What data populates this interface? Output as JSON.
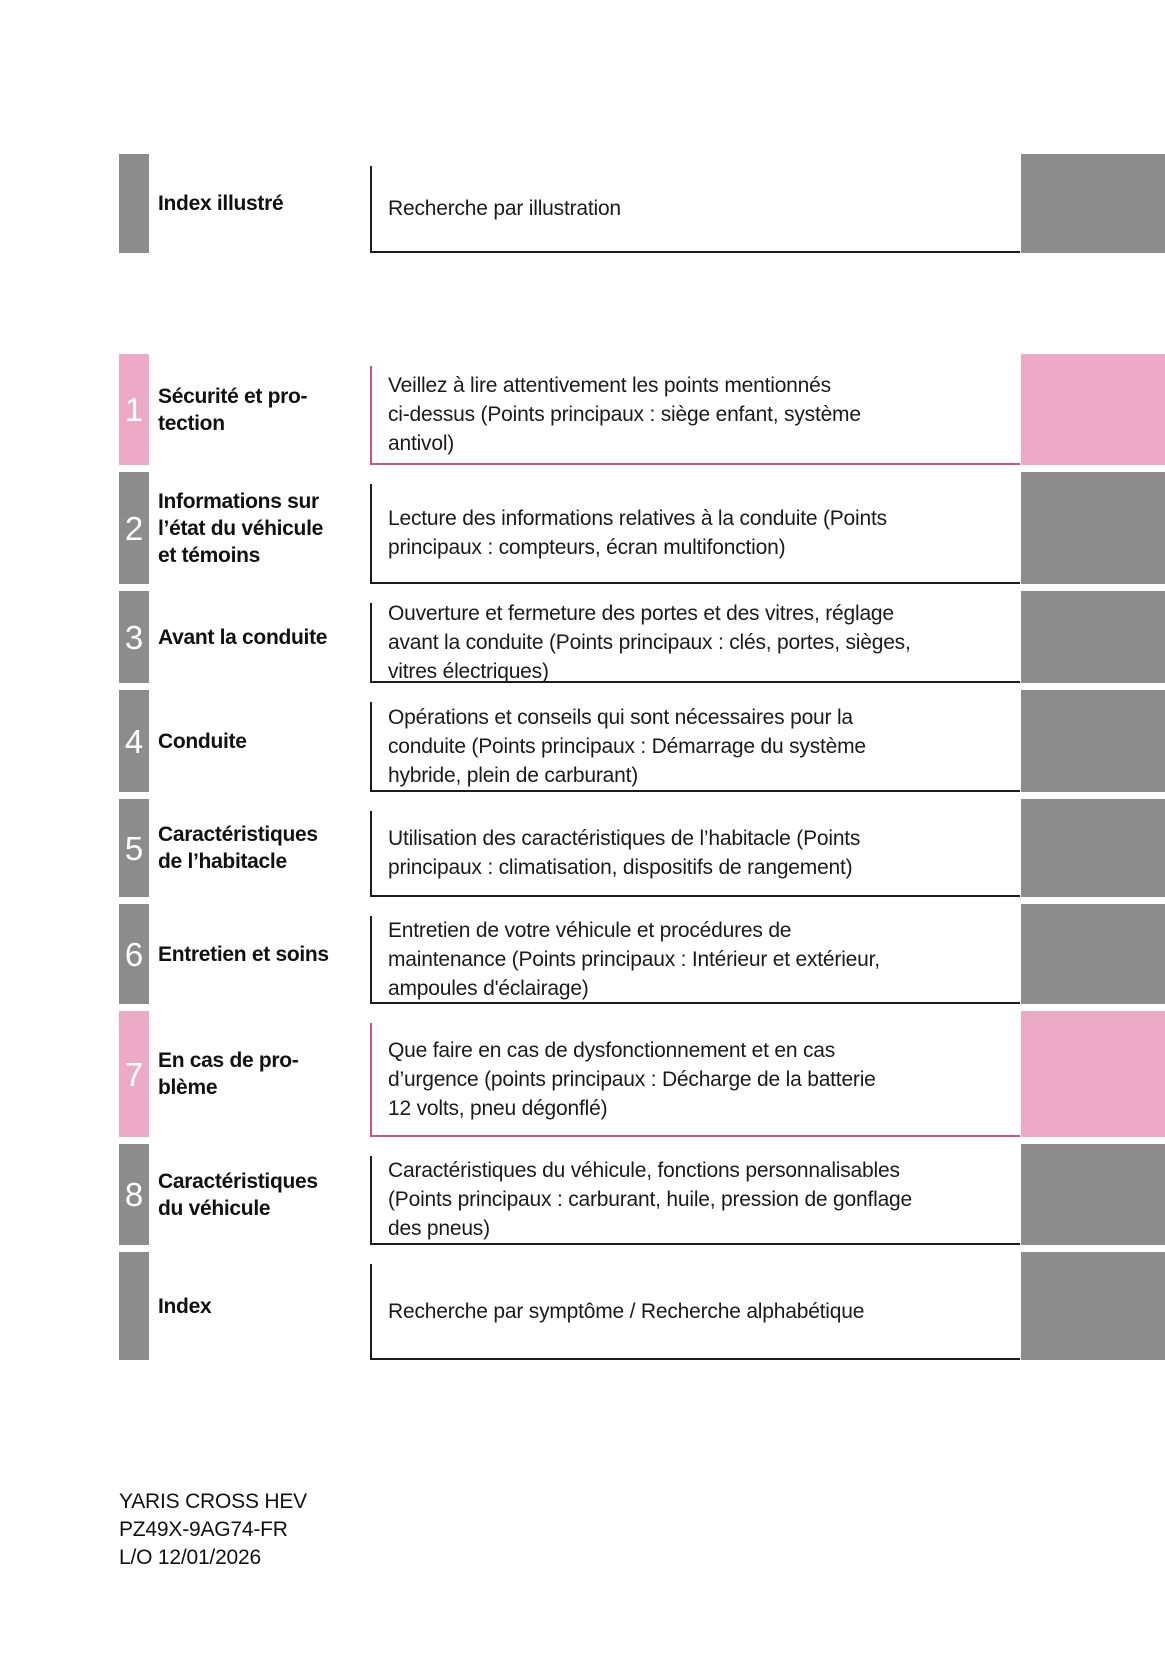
{
  "colors": {
    "gray_tab": "#8c8c8c",
    "pink_tab": "#edaac6",
    "pink_line": "#c2548f",
    "dark_line": "#1c1c1c"
  },
  "toc": {
    "rows": [
      {
        "number": "",
        "accent": "gray",
        "label": "Index illustré",
        "description": "Recherche par illustration"
      },
      {
        "number": "1",
        "accent": "pink",
        "label": "Sécurité et pro-\ntection",
        "description": "Veillez à lire attentivement les points mentionnés\nci-dessus (Points principaux : siège enfant, système\nantivol)"
      },
      {
        "number": "2",
        "accent": "gray",
        "label": "Informations sur\nl’état du véhicule\net témoins",
        "description": "Lecture des informations relatives à la conduite (Points\nprincipaux : compteurs, écran multifonction)"
      },
      {
        "number": "3",
        "accent": "gray",
        "label": "Avant la conduite",
        "description": "Ouverture et fermeture des portes et des vitres, réglage\navant la conduite (Points principaux : clés, portes, sièges,\nvitres électriques)"
      },
      {
        "number": "4",
        "accent": "gray",
        "label": "Conduite",
        "description": "Opérations et conseils qui sont nécessaires pour la\nconduite (Points principaux : Démarrage du système\nhybride, plein de carburant)"
      },
      {
        "number": "5",
        "accent": "gray",
        "label": "Caractéristiques\nde l’habitacle",
        "description": "Utilisation des caractéristiques de l’habitacle (Points\nprincipaux : climatisation, dispositifs de rangement)"
      },
      {
        "number": "6",
        "accent": "gray",
        "label": "Entretien et soins",
        "description": "Entretien de votre véhicule et procédures de\nmaintenance (Points principaux : Intérieur et extérieur,\nampoules d'éclairage)"
      },
      {
        "number": "7",
        "accent": "pink",
        "label": "En cas de pro-\nblème",
        "description": "Que faire en cas de dysfonctionnement et en cas\nd’urgence (points principaux : Décharge de la batterie\n12 volts, pneu dégonflé)"
      },
      {
        "number": "8",
        "accent": "gray",
        "label": "Caractéristiques\ndu véhicule",
        "description": "Caractéristiques du véhicule, fonctions personnalisables\n(Points principaux : carburant, huile, pression de gonflage\ndes pneus)"
      },
      {
        "number": "",
        "accent": "gray",
        "label": "Index",
        "description": "Recherche par symptôme / Recherche alphabétique"
      }
    ]
  },
  "footer": {
    "model": "YARIS CROSS HEV",
    "part_number": "PZ49X-9AG74-FR",
    "layout_date": "L/O 12/01/2026"
  }
}
